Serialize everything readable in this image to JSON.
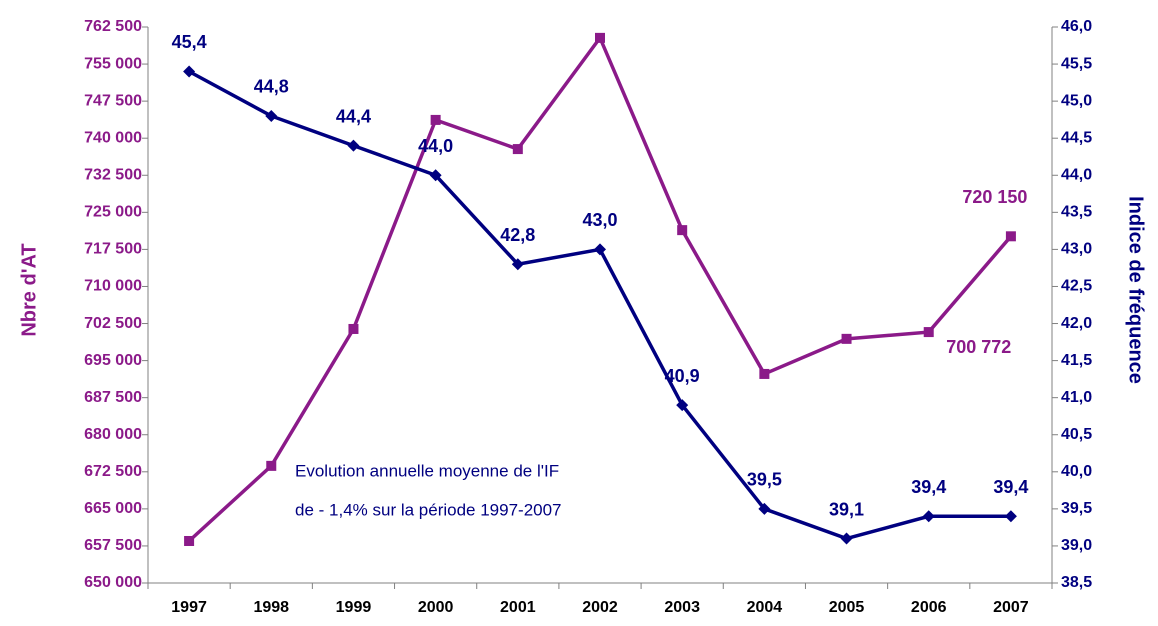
{
  "chart_data": {
    "type": "line",
    "ylabel": "Nbre d'AT",
    "y2label": "Indice de fréquence",
    "annotations": [
      "Evolution annuelle moyenne de l'IF",
      "de - 1,4% sur la période 1997-2007"
    ],
    "categories": [
      "1997",
      "1998",
      "1999",
      "2000",
      "2001",
      "2002",
      "2003",
      "2004",
      "2005",
      "2006",
      "2007"
    ],
    "series": [
      {
        "color": "#8b1a89",
        "marker": "square",
        "values": [
          658500,
          673700,
          701400,
          743700,
          737800,
          760300,
          721400,
          692300,
          699400,
          700772,
          720150
        ],
        "value_labels": [
          null,
          null,
          null,
          null,
          null,
          null,
          null,
          null,
          null,
          "700 772",
          "720 150"
        ]
      },
      {
        "color": "#000080",
        "marker": "diamond",
        "axis": "y2",
        "values": [
          45.4,
          44.8,
          44.4,
          44.0,
          42.8,
          43.0,
          40.9,
          39.5,
          39.1,
          39.4,
          39.4
        ],
        "value_labels": [
          "45,4",
          "44,8",
          "44,4",
          "44,0",
          "42,8",
          "43,0",
          "40,9",
          "39,5",
          "39,1",
          "39,4",
          "39,4"
        ]
      }
    ],
    "ylim": [
      650000,
      762500
    ],
    "yticks": [
      {
        "value": 650000,
        "label": "650 000"
      },
      {
        "value": 657500,
        "label": "657 500"
      },
      {
        "value": 665000,
        "label": "665 000"
      },
      {
        "value": 672500,
        "label": "672 500"
      },
      {
        "value": 680000,
        "label": "680 000"
      },
      {
        "value": 687500,
        "label": "687 500"
      },
      {
        "value": 695000,
        "label": "695 000"
      },
      {
        "value": 702500,
        "label": "702 500"
      },
      {
        "value": 710000,
        "label": "710 000"
      },
      {
        "value": 717500,
        "label": "717 500"
      },
      {
        "value": 725000,
        "label": "725 000"
      },
      {
        "value": 732500,
        "label": "732 500"
      },
      {
        "value": 740000,
        "label": "740 000"
      },
      {
        "value": 747500,
        "label": "747 500"
      },
      {
        "value": 755000,
        "label": "755 000"
      },
      {
        "value": 762500,
        "label": "762 500"
      }
    ],
    "y2lim": [
      38.5,
      46.0
    ],
    "y2ticks": [
      {
        "value": 38.5,
        "label": "38,5"
      },
      {
        "value": 39.0,
        "label": "39,0"
      },
      {
        "value": 39.5,
        "label": "39,5"
      },
      {
        "value": 40.0,
        "label": "40,0"
      },
      {
        "value": 40.5,
        "label": "40,5"
      },
      {
        "value": 41.0,
        "label": "41,0"
      },
      {
        "value": 41.5,
        "label": "41,5"
      },
      {
        "value": 42.0,
        "label": "42,0"
      },
      {
        "value": 42.5,
        "label": "42,5"
      },
      {
        "value": 43.0,
        "label": "43,0"
      },
      {
        "value": 43.5,
        "label": "43,5"
      },
      {
        "value": 44.0,
        "label": "44,0"
      },
      {
        "value": 44.5,
        "label": "44,5"
      },
      {
        "value": 45.0,
        "label": "45,0"
      },
      {
        "value": 45.5,
        "label": "45,5"
      },
      {
        "value": 46.0,
        "label": "46,0"
      }
    ],
    "grid": false
  }
}
